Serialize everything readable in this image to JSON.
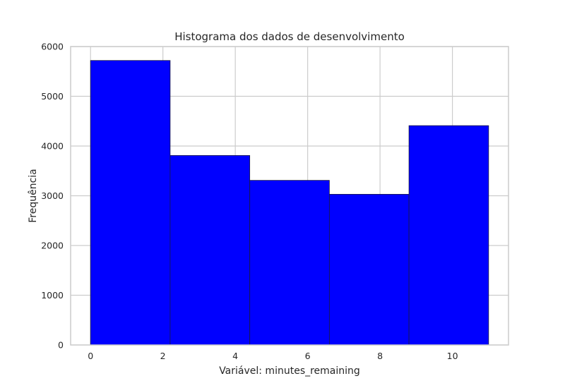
{
  "chart_data": {
    "type": "histogram",
    "title": "Histograma dos dados de desenvolvimento",
    "xlabel": "Variável: minutes_remaining",
    "ylabel": "Frequência",
    "xlim": [
      -0.55,
      11.55
    ],
    "ylim": [
      0,
      6000
    ],
    "bins": [
      {
        "start": 0.0,
        "end": 2.2,
        "value": 5720
      },
      {
        "start": 2.2,
        "end": 4.4,
        "value": 3810
      },
      {
        "start": 4.4,
        "end": 6.6,
        "value": 3310
      },
      {
        "start": 6.6,
        "end": 8.8,
        "value": 3030
      },
      {
        "start": 8.8,
        "end": 11.0,
        "value": 4410
      }
    ],
    "x_ticks": [
      0,
      2,
      4,
      6,
      8,
      10
    ],
    "x_tick_labels": [
      "0",
      "2",
      "4",
      "6",
      "8",
      "10"
    ],
    "y_ticks": [
      0,
      1000,
      2000,
      3000,
      4000,
      5000,
      6000
    ],
    "y_tick_labels": [
      "0",
      "1000",
      "2000",
      "3000",
      "4000",
      "5000",
      "6000"
    ],
    "bar_color": "#0000ff",
    "edge_color": "#1a1a40",
    "grid": true,
    "grid_color": "#cccccc",
    "spine_color": "#cccccc"
  }
}
